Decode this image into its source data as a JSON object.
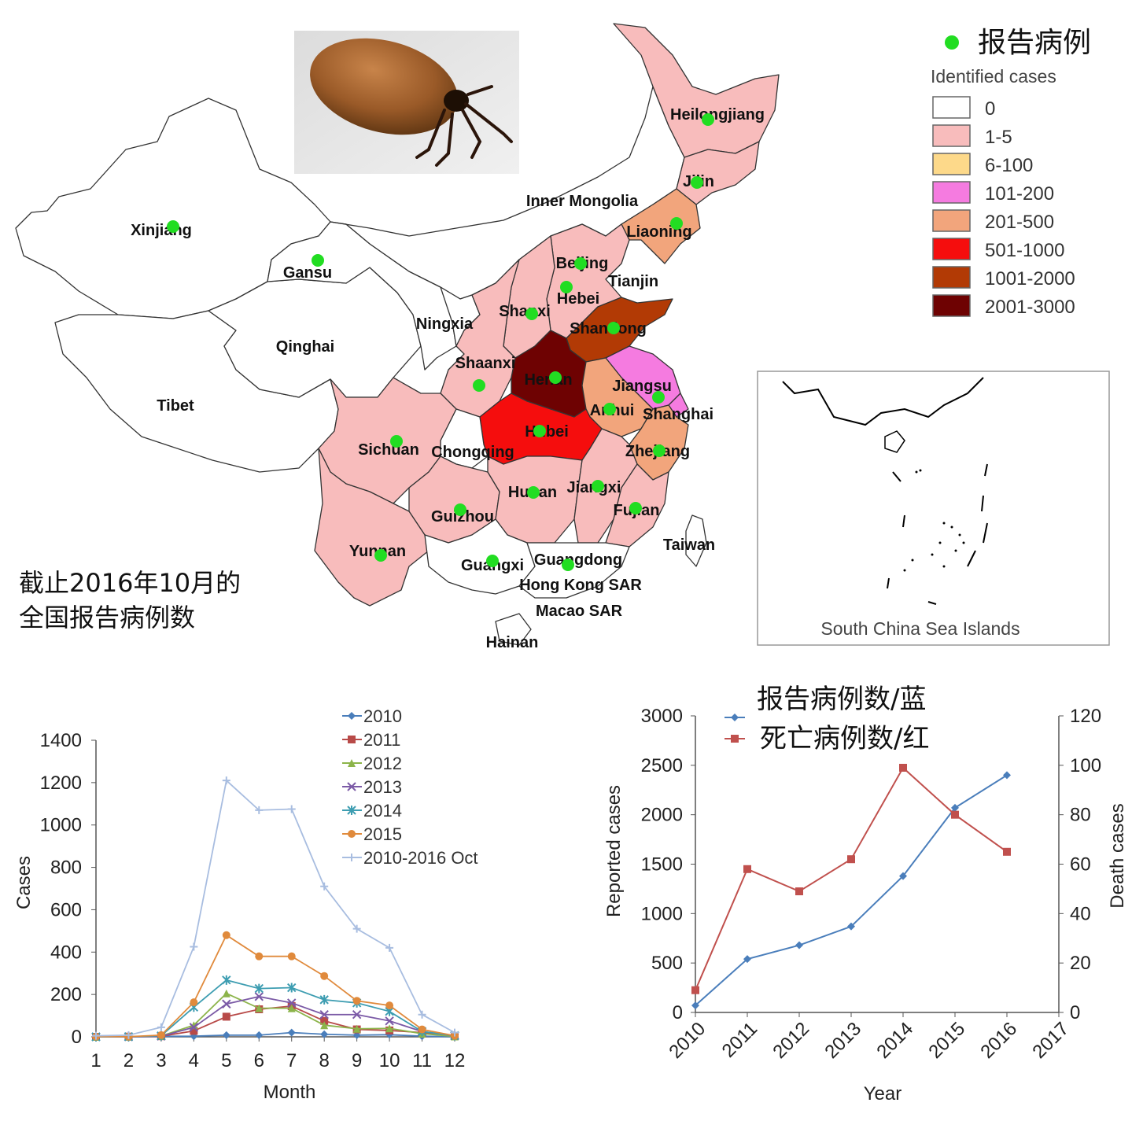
{
  "map": {
    "legend": {
      "dot_label": "报告病例",
      "title": "Identified cases",
      "bins": [
        {
          "label": "0",
          "color": "#ffffff"
        },
        {
          "label": "1-5",
          "color": "#f8bcbc"
        },
        {
          "label": "6-100",
          "color": "#fdd98a"
        },
        {
          "label": "101-200",
          "color": "#f57be0"
        },
        {
          "label": "201-500",
          "color": "#f2a57c"
        },
        {
          "label": "501-1000",
          "color": "#f50d0d"
        },
        {
          "label": "1001-2000",
          "color": "#b23a05"
        },
        {
          "label": "2001-3000",
          "color": "#6e0202"
        }
      ]
    },
    "caption_line1": "截止2016年10月的",
    "caption_line2": "全国报告病例数",
    "inset_label": "South China Sea Islands",
    "dot_color": "#22dd22",
    "provinces": [
      {
        "name": "Heilongjiang",
        "dot": true
      },
      {
        "name": "Jilin",
        "dot": true
      },
      {
        "name": "Inner Mongolia",
        "dot": false
      },
      {
        "name": "Liaoning",
        "dot": true
      },
      {
        "name": "Xinjiang",
        "dot": true
      },
      {
        "name": "Gansu",
        "dot": true
      },
      {
        "name": "Beijing",
        "dot": true
      },
      {
        "name": "Tianjin",
        "dot": false
      },
      {
        "name": "Hebei",
        "dot": true
      },
      {
        "name": "Shanxi",
        "dot": true
      },
      {
        "name": "Ningxia",
        "dot": false
      },
      {
        "name": "Shandong",
        "dot": true
      },
      {
        "name": "Qinghai",
        "dot": false
      },
      {
        "name": "Shaanxi",
        "dot": true
      },
      {
        "name": "Henan",
        "dot": true
      },
      {
        "name": "Jiangsu",
        "dot": true
      },
      {
        "name": "Tibet",
        "dot": false
      },
      {
        "name": "Anhui",
        "dot": true
      },
      {
        "name": "Shanghai",
        "dot": false
      },
      {
        "name": "Hubei",
        "dot": true
      },
      {
        "name": "Sichuan",
        "dot": true
      },
      {
        "name": "Chongqing",
        "dot": false
      },
      {
        "name": "Zhejiang",
        "dot": true
      },
      {
        "name": "Hunan",
        "dot": true
      },
      {
        "name": "Jiangxi",
        "dot": true
      },
      {
        "name": "Fujian",
        "dot": true
      },
      {
        "name": "Guizhou",
        "dot": true
      },
      {
        "name": "Yunnan",
        "dot": true
      },
      {
        "name": "Taiwan",
        "dot": false
      },
      {
        "name": "Guangxi",
        "dot": true
      },
      {
        "name": "Guangdong",
        "dot": true
      },
      {
        "name": "Hong Kong SAR",
        "dot": false
      },
      {
        "name": "Macao SAR",
        "dot": false
      },
      {
        "name": "Hainan",
        "dot": false
      }
    ]
  },
  "chart_data": [
    {
      "type": "line",
      "xlabel": "Month",
      "ylabel": "Cases",
      "x": [
        1,
        2,
        3,
        4,
        5,
        6,
        7,
        8,
        9,
        10,
        11,
        12
      ],
      "ylim": [
        0,
        1400
      ],
      "yticks": [
        0,
        200,
        400,
        600,
        800,
        1000,
        1200,
        1400
      ],
      "legend_position": "top-right",
      "series": [
        {
          "name": "2010",
          "color": "#4a7ebb",
          "marker": "diamond",
          "values": [
            0,
            0,
            2,
            3,
            8,
            8,
            20,
            12,
            8,
            10,
            3,
            0
          ]
        },
        {
          "name": "2011",
          "color": "#b84a48",
          "marker": "square",
          "values": [
            0,
            1,
            3,
            28,
            95,
            130,
            145,
            75,
            35,
            30,
            20,
            4
          ]
        },
        {
          "name": "2012",
          "color": "#8cb44a",
          "marker": "triangle",
          "values": [
            0,
            1,
            4,
            55,
            205,
            135,
            135,
            55,
            38,
            40,
            15,
            2
          ]
        },
        {
          "name": "2013",
          "color": "#7b5aa6",
          "marker": "x",
          "values": [
            0,
            0,
            3,
            45,
            155,
            190,
            160,
            105,
            105,
            75,
            25,
            5
          ]
        },
        {
          "name": "2014",
          "color": "#3d9db1",
          "marker": "star",
          "values": [
            0,
            1,
            5,
            140,
            268,
            228,
            232,
            175,
            160,
            120,
            25,
            6
          ]
        },
        {
          "name": "2015",
          "color": "#e08a3c",
          "marker": "circle",
          "values": [
            1,
            1,
            8,
            163,
            480,
            380,
            380,
            287,
            170,
            148,
            35,
            5
          ]
        },
        {
          "name": "2010-2016 Oct",
          "color": "#a8bde0",
          "marker": "plus",
          "values": [
            5,
            8,
            45,
            425,
            1210,
            1070,
            1075,
            710,
            510,
            420,
            105,
            20
          ]
        }
      ]
    },
    {
      "type": "line",
      "xlabel": "Year",
      "ylabel": "Reported cases",
      "y2label": "Death cases",
      "x": [
        2010,
        2011,
        2012,
        2013,
        2014,
        2015,
        2016,
        2017
      ],
      "ylim": [
        0,
        3000
      ],
      "y2lim": [
        0,
        120
      ],
      "yticks": [
        0,
        500,
        1000,
        1500,
        2000,
        2500,
        3000
      ],
      "y2ticks": [
        0,
        20,
        40,
        60,
        80,
        100,
        120
      ],
      "legend_position": "top-center",
      "series": [
        {
          "name": "报告病例数/蓝",
          "axis": "left",
          "color": "#4a7ebb",
          "marker": "diamond",
          "x": [
            2010,
            2011,
            2012,
            2013,
            2014,
            2015,
            2016
          ],
          "values": [
            71,
            540,
            680,
            870,
            1380,
            2070,
            2400
          ]
        },
        {
          "name": "死亡病例数/红",
          "axis": "right",
          "color": "#c0504d",
          "marker": "square",
          "x": [
            2010,
            2011,
            2012,
            2013,
            2014,
            2015,
            2016
          ],
          "values": [
            9,
            58,
            49,
            62,
            99,
            80,
            65
          ]
        }
      ]
    }
  ]
}
